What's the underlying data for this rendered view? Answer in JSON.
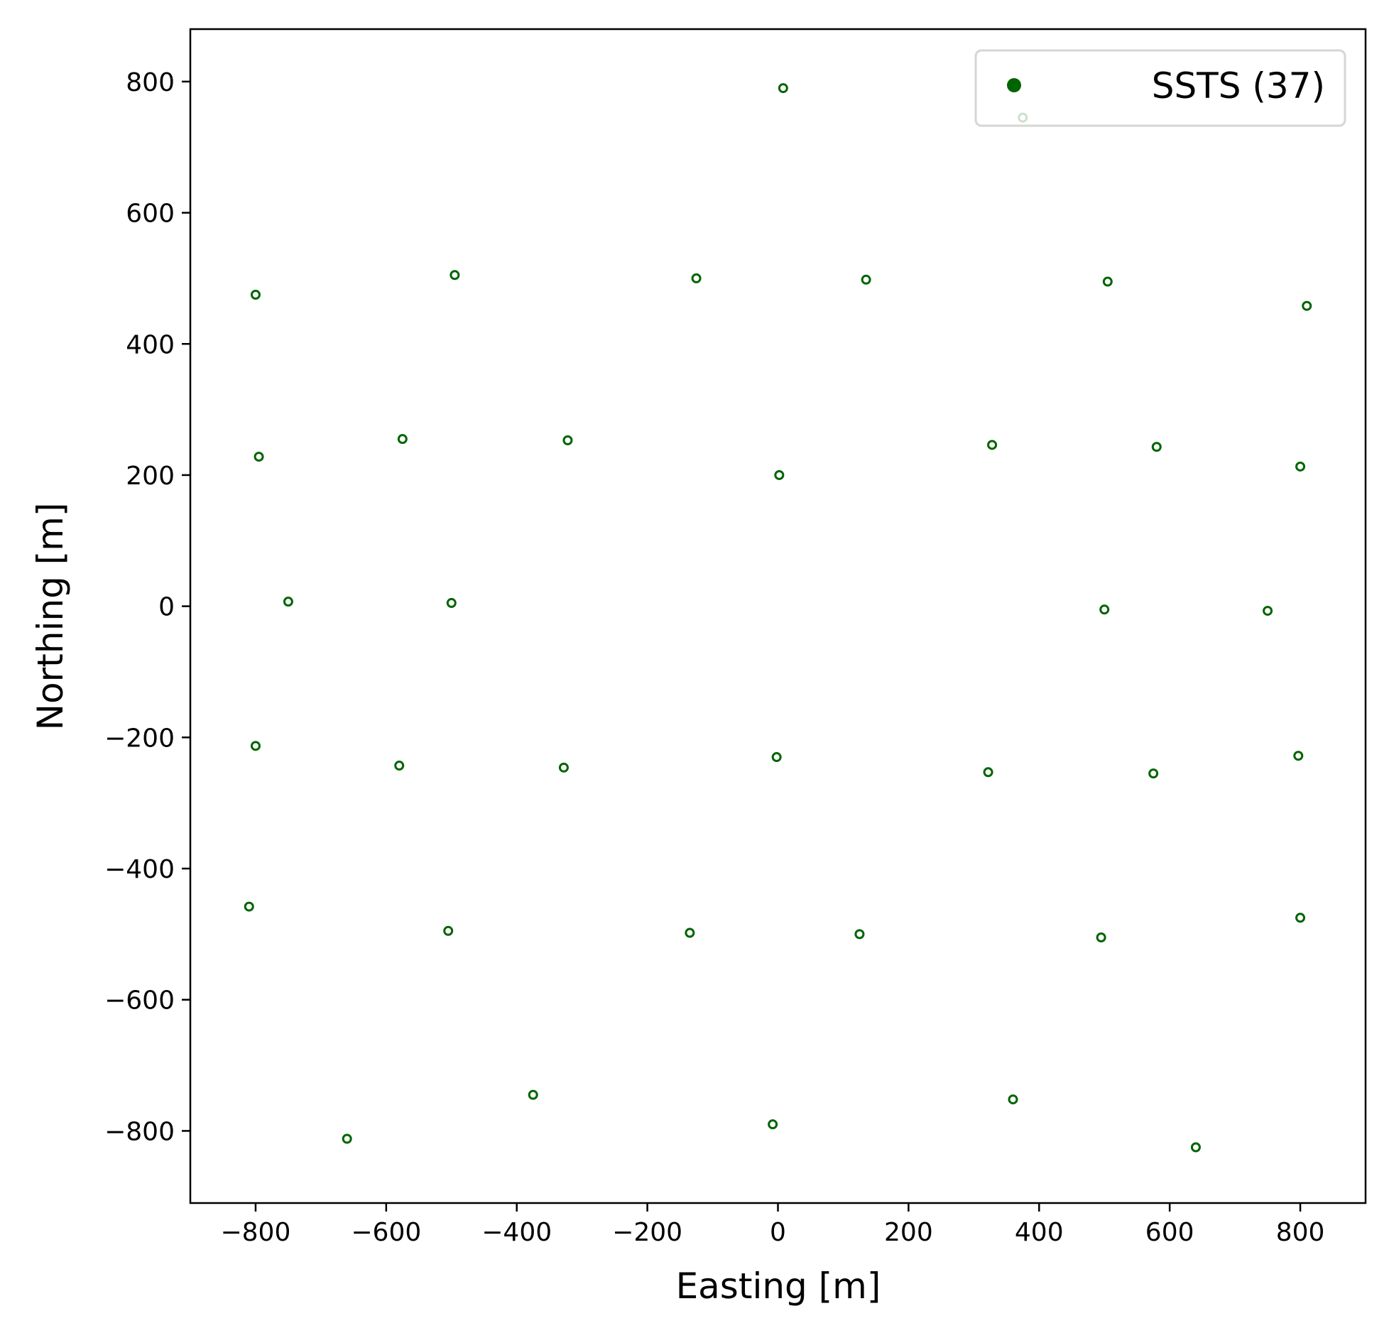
{
  "chart_data": {
    "type": "scatter",
    "xlabel": "Easting [m]",
    "ylabel": "Northing [m]",
    "xlim": [
      -900,
      900
    ],
    "ylim": [
      -910,
      880
    ],
    "xticks": [
      -800,
      -600,
      -400,
      -200,
      0,
      200,
      400,
      600,
      800
    ],
    "yticks": [
      -800,
      -600,
      -400,
      -200,
      0,
      200,
      400,
      600,
      800
    ],
    "grid": false,
    "legend_position": "top-right",
    "series": [
      {
        "name": "SSTS (37)",
        "color": "#006400",
        "marker": "hollow-circle",
        "points": [
          {
            "x": 8,
            "y": 790
          },
          {
            "x": 375,
            "y": 745
          },
          {
            "x": -800,
            "y": 475
          },
          {
            "x": -495,
            "y": 505
          },
          {
            "x": -125,
            "y": 500
          },
          {
            "x": 135,
            "y": 498
          },
          {
            "x": 505,
            "y": 495
          },
          {
            "x": 810,
            "y": 458
          },
          {
            "x": -795,
            "y": 228
          },
          {
            "x": -575,
            "y": 255
          },
          {
            "x": -322,
            "y": 253
          },
          {
            "x": 2,
            "y": 200
          },
          {
            "x": 328,
            "y": 246
          },
          {
            "x": 580,
            "y": 243
          },
          {
            "x": 800,
            "y": 213
          },
          {
            "x": -750,
            "y": 7
          },
          {
            "x": -500,
            "y": 5
          },
          {
            "x": 500,
            "y": -5
          },
          {
            "x": 750,
            "y": -7
          },
          {
            "x": -800,
            "y": -213
          },
          {
            "x": -580,
            "y": -243
          },
          {
            "x": -328,
            "y": -246
          },
          {
            "x": -2,
            "y": -230
          },
          {
            "x": 322,
            "y": -253
          },
          {
            "x": 575,
            "y": -255
          },
          {
            "x": 797,
            "y": -228
          },
          {
            "x": -810,
            "y": -458
          },
          {
            "x": -505,
            "y": -495
          },
          {
            "x": -135,
            "y": -498
          },
          {
            "x": 125,
            "y": -500
          },
          {
            "x": 495,
            "y": -505
          },
          {
            "x": 800,
            "y": -475
          },
          {
            "x": -660,
            "y": -812
          },
          {
            "x": -375,
            "y": -745
          },
          {
            "x": -8,
            "y": -790
          },
          {
            "x": 360,
            "y": -752
          },
          {
            "x": 640,
            "y": -825
          }
        ]
      }
    ]
  }
}
